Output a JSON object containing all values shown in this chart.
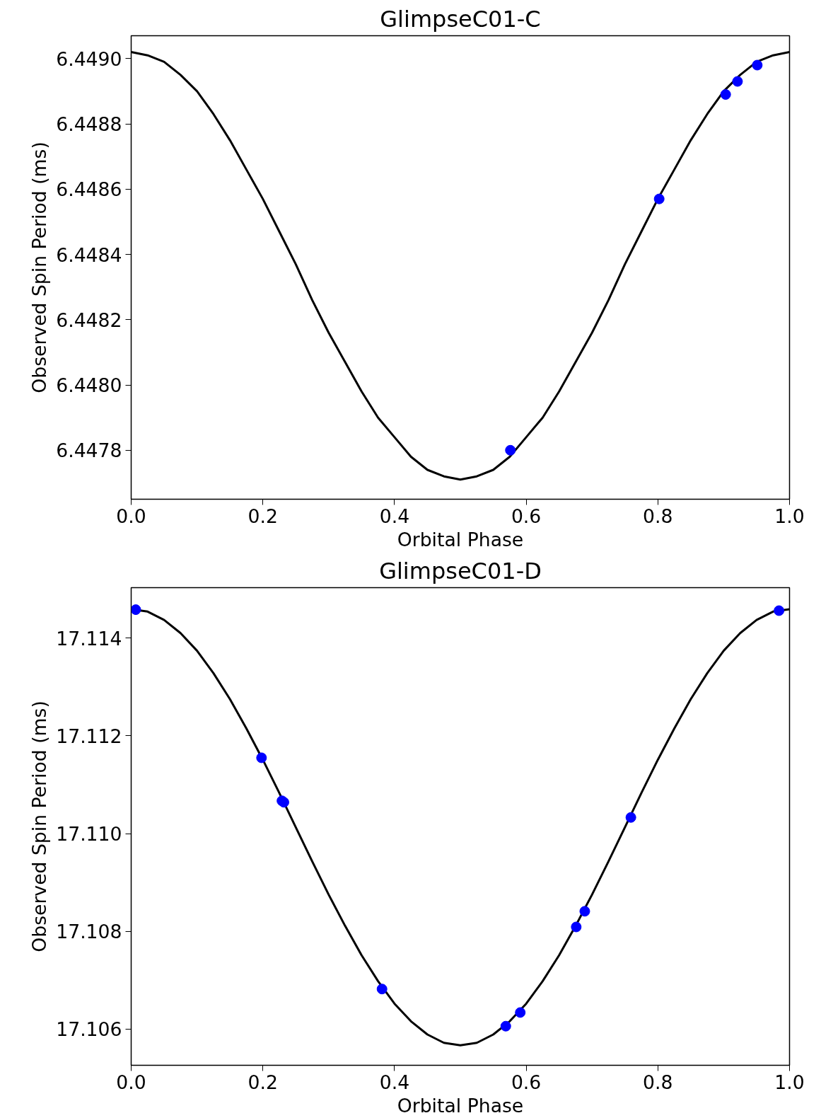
{
  "chart_data": [
    {
      "type": "scatter",
      "title": "GlimpseC01-C",
      "xlabel": "Orbital Phase",
      "ylabel": "Observed Spin Period (ms)",
      "xlim": [
        0,
        1
      ],
      "ylim": [
        6.44765,
        6.44907
      ],
      "grid": false,
      "xticks": [
        {
          "value": 0,
          "label": "0.0"
        },
        {
          "value": 0.2,
          "label": "0.2"
        },
        {
          "value": 0.4,
          "label": "0.4"
        },
        {
          "value": 0.6,
          "label": "0.6"
        },
        {
          "value": 0.8,
          "label": "0.8"
        },
        {
          "value": 1,
          "label": "1.0"
        }
      ],
      "yticks": [
        6.4478,
        {
          "value": 6.448,
          "label": "6.4480"
        },
        6.4482,
        6.4484,
        6.4486,
        6.4488,
        {
          "value": 6.449,
          "label": "6.4490"
        }
      ],
      "series": [
        {
          "type": "line",
          "color": "#000000",
          "line_style": "solid",
          "x": [
            0,
            0.025,
            0.05,
            0.075,
            0.1,
            0.125,
            0.15,
            0.175,
            0.2,
            0.225,
            0.25,
            0.275,
            0.3,
            0.325,
            0.35,
            0.375,
            0.4,
            0.425,
            0.45,
            0.475,
            0.5,
            0.525,
            0.55,
            0.575,
            0.6,
            0.625,
            0.65,
            0.675,
            0.7,
            0.725,
            0.75,
            0.775,
            0.8,
            0.825,
            0.85,
            0.875,
            0.9,
            0.925,
            0.95,
            0.975,
            1
          ],
          "values": [
            6.44902,
            6.44901,
            6.44899,
            6.44895,
            6.4489,
            6.44883,
            6.44875,
            6.44866,
            6.44857,
            6.44847,
            6.44837,
            6.44826,
            6.44816,
            6.44807,
            6.44798,
            6.4479,
            6.44784,
            6.44778,
            6.44774,
            6.44772,
            6.44771,
            6.44772,
            6.44774,
            6.44778,
            6.44784,
            6.4479,
            6.44798,
            6.44807,
            6.44816,
            6.44826,
            6.44837,
            6.44847,
            6.44857,
            6.44866,
            6.44875,
            6.44883,
            6.4489,
            6.44895,
            6.44899,
            6.44901,
            6.44902
          ]
        },
        {
          "marker": "circle",
          "color": "#0000ff",
          "x": [
            0.576,
            0.802,
            0.903,
            0.921,
            0.951
          ],
          "values": [
            6.4478,
            6.44857,
            6.44889,
            6.44893,
            6.44898
          ]
        }
      ]
    },
    {
      "type": "scatter",
      "title": "GlimpseC01-D",
      "xlabel": "Orbital Phase",
      "ylabel": "Observed Spin Period (ms)",
      "xlim": [
        0,
        1
      ],
      "ylim": [
        17.10526,
        17.11503
      ],
      "grid": false,
      "xticks": [
        {
          "value": 0,
          "label": "0.0"
        },
        {
          "value": 0.2,
          "label": "0.2"
        },
        {
          "value": 0.4,
          "label": "0.4"
        },
        {
          "value": 0.6,
          "label": "0.6"
        },
        {
          "value": 0.8,
          "label": "0.8"
        },
        {
          "value": 1,
          "label": "1.0"
        }
      ],
      "yticks": [
        17.106,
        17.108,
        {
          "value": 17.11,
          "label": "17.110"
        },
        17.112,
        17.114
      ],
      "series": [
        {
          "type": "line",
          "color": "#000000",
          "line_style": "solid",
          "x": [
            0,
            0.025,
            0.05,
            0.075,
            0.1,
            0.125,
            0.15,
            0.175,
            0.2,
            0.225,
            0.25,
            0.275,
            0.3,
            0.325,
            0.35,
            0.375,
            0.4,
            0.425,
            0.45,
            0.475,
            0.5,
            0.525,
            0.55,
            0.575,
            0.6,
            0.625,
            0.65,
            0.675,
            0.7,
            0.725,
            0.75,
            0.775,
            0.8,
            0.825,
            0.85,
            0.875,
            0.9,
            0.925,
            0.95,
            0.975,
            1
          ],
          "values": [
            17.11459,
            17.11454,
            17.11437,
            17.1141,
            17.11374,
            17.11328,
            17.11275,
            17.11215,
            17.11151,
            17.11083,
            17.11013,
            17.10943,
            17.10875,
            17.10811,
            17.10751,
            17.10698,
            17.10652,
            17.10616,
            17.10589,
            17.10572,
            17.10567,
            17.10572,
            17.10589,
            17.10616,
            17.10652,
            17.10698,
            17.10751,
            17.10811,
            17.10875,
            17.10943,
            17.11013,
            17.11083,
            17.11151,
            17.11215,
            17.11275,
            17.11328,
            17.11374,
            17.1141,
            17.11437,
            17.11454,
            17.11459
          ]
        },
        {
          "marker": "circle",
          "color": "#0000ff",
          "x": [
            0.007,
            0.198,
            0.229,
            0.232,
            0.381,
            0.569,
            0.591,
            0.676,
            0.689,
            0.759,
            0.984
          ],
          "values": [
            17.11458,
            17.11155,
            17.11067,
            17.11064,
            17.10682,
            17.10606,
            17.10634,
            17.10809,
            17.10841,
            17.11033,
            17.11456
          ]
        }
      ]
    }
  ]
}
